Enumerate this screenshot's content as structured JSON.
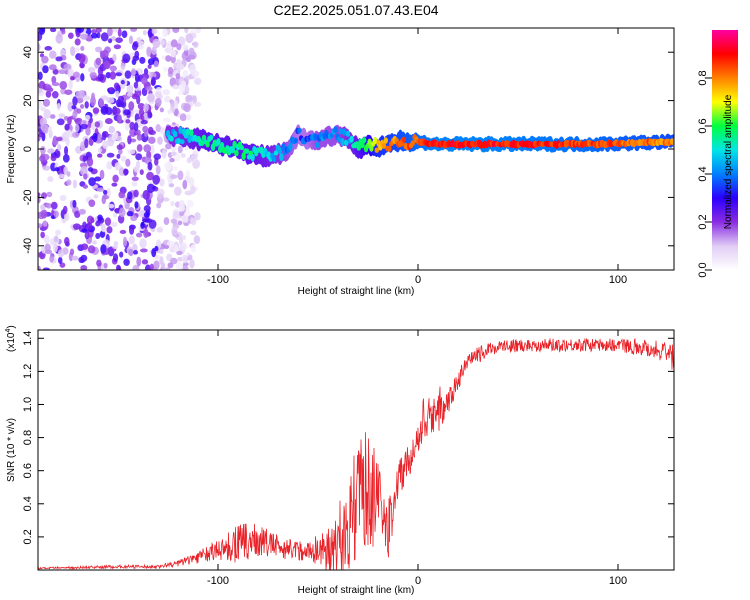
{
  "title": "C2E2.2025.051.07.43.E04",
  "chart_data": [
    {
      "type": "heatmap",
      "xlabel": "Height of straight line (km)",
      "ylabel": "Frequency (Hz)",
      "xlim": [
        -190,
        128
      ],
      "ylim": [
        -50,
        50
      ],
      "xticks": [
        -100,
        0,
        100
      ],
      "xtick_labels": [
        "-100",
        "0",
        "100"
      ],
      "yticks": [
        -40,
        -20,
        0,
        20,
        40
      ],
      "ytick_labels": [
        "-40",
        "-20",
        "0",
        "20",
        "40"
      ],
      "colorbar": {
        "label": "Normalized spectral amplitude",
        "range": [
          0,
          1
        ],
        "ticks": [
          0.0,
          0.2,
          0.4,
          0.6,
          0.8
        ],
        "tick_labels": [
          "0.0",
          "0.2",
          "0.4",
          "0.6",
          "0.8"
        ],
        "colors": [
          "#ffffff",
          "#e0cdf5",
          "#8a2be2",
          "#2a00ff",
          "#0080ff",
          "#00e5e5",
          "#00ff40",
          "#ffff00",
          "#ff8000",
          "#ff0000",
          "#ff00a0"
        ]
      },
      "noise_region": {
        "x": [
          -190,
          -120
        ],
        "y": [
          -50,
          50
        ],
        "amplitude": [
          0.05,
          0.3
        ]
      },
      "signal_track": {
        "x": [
          -125,
          -115,
          -105,
          -95,
          -85,
          -75,
          -65,
          -60,
          -55,
          -50,
          -45,
          -40,
          -35,
          -30,
          -25,
          -20,
          -10,
          0,
          10,
          30,
          60,
          90,
          128
        ],
        "freq": [
          6,
          5,
          3,
          1,
          -2,
          -3,
          -1,
          6,
          4,
          3,
          5,
          6,
          4,
          0,
          2,
          1,
          3,
          3,
          2,
          2,
          2,
          2,
          3
        ],
        "amplitude": [
          0.45,
          0.5,
          0.55,
          0.55,
          0.55,
          0.5,
          0.4,
          0.35,
          0.35,
          0.4,
          0.4,
          0.4,
          0.45,
          0.55,
          0.65,
          0.75,
          0.8,
          0.85,
          0.9,
          0.9,
          0.88,
          0.85,
          0.8
        ]
      }
    },
    {
      "type": "line",
      "ylabel": "SNR (10 * v/v)",
      "xlabel": "Height of straight line (km)",
      "y_multiplier": "(x10",
      "y_multiplier_exp": "4",
      "xlim": [
        -190,
        128
      ],
      "ylim": [
        0,
        1.45
      ],
      "xticks": [
        -100,
        0,
        100
      ],
      "xtick_labels": [
        "-100",
        "0",
        "100"
      ],
      "yticks": [
        0.2,
        0.4,
        0.6,
        0.8,
        1.0,
        1.2,
        1.4
      ],
      "ytick_labels": [
        "0.2",
        "0.4",
        "0.6",
        "0.8",
        "1.0",
        "1.2",
        "1.4"
      ],
      "series": [
        {
          "name": "SNR",
          "color": "#e8242a",
          "x": [
            -190,
            -150,
            -130,
            -120,
            -110,
            -100,
            -95,
            -90,
            -80,
            -70,
            -60,
            -50,
            -40,
            -35,
            -30,
            -25,
            -20,
            -15,
            -10,
            -5,
            0,
            5,
            10,
            15,
            20,
            25,
            30,
            35,
            40,
            60,
            80,
            100,
            110,
            120,
            128
          ],
          "y": [
            0.01,
            0.02,
            0.02,
            0.04,
            0.08,
            0.12,
            0.14,
            0.16,
            0.18,
            0.14,
            0.12,
            0.11,
            0.15,
            0.25,
            0.45,
            0.5,
            0.38,
            0.22,
            0.55,
            0.65,
            0.78,
            0.9,
            0.95,
            1.0,
            1.15,
            1.25,
            1.3,
            1.33,
            1.35,
            1.36,
            1.36,
            1.36,
            1.35,
            1.33,
            1.28
          ],
          "spread": [
            0.005,
            0.01,
            0.01,
            0.02,
            0.04,
            0.06,
            0.1,
            0.12,
            0.1,
            0.07,
            0.06,
            0.08,
            0.2,
            0.3,
            0.35,
            0.35,
            0.3,
            0.2,
            0.12,
            0.1,
            0.08,
            0.1,
            0.12,
            0.08,
            0.06,
            0.05,
            0.05,
            0.04,
            0.04,
            0.04,
            0.04,
            0.04,
            0.05,
            0.06,
            0.08
          ]
        }
      ]
    }
  ]
}
